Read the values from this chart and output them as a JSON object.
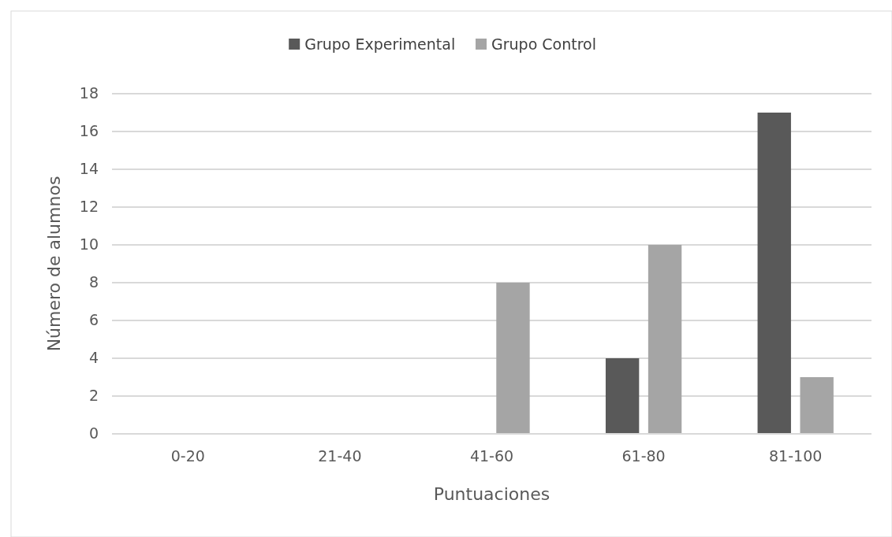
{
  "chart_data": {
    "type": "bar",
    "xlabel": "Puntuaciones",
    "ylabel": "Número de alumnos",
    "categories": [
      "0-20",
      "21-40",
      "41-60",
      "61-80",
      "81-100"
    ],
    "series": [
      {
        "name": "Grupo Experimental",
        "color": "#595959",
        "values": [
          0,
          0,
          0,
          4,
          17
        ]
      },
      {
        "name": "Grupo Control",
        "color": "#a5a5a5",
        "values": [
          0,
          0,
          8,
          10,
          3
        ]
      }
    ],
    "ylim": [
      0,
      18
    ],
    "yticks": [
      0,
      2,
      4,
      6,
      8,
      10,
      12,
      14,
      16,
      18
    ],
    "grid": "y",
    "legend": "top"
  }
}
